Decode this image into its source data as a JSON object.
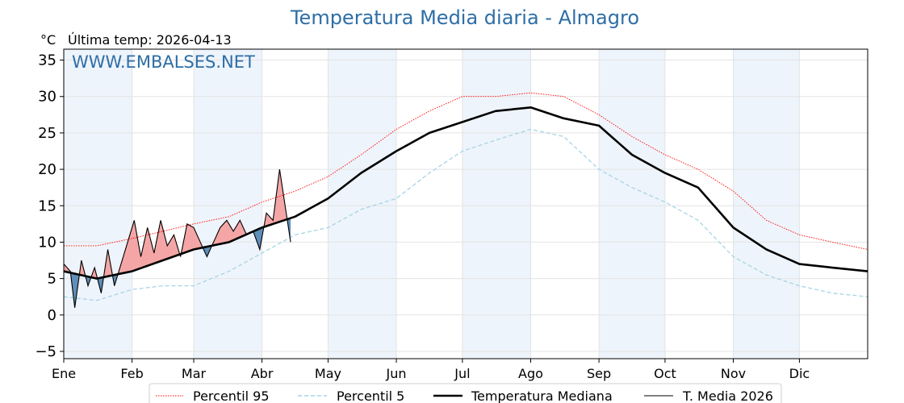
{
  "chart_data": {
    "type": "line",
    "title": "Temperatura Media diaria - Almagro",
    "unit_label": "°C",
    "subtitle": "Última temp: 2026-04-13",
    "watermark": "WWW.EMBALSES.NET",
    "ylim": [
      -6,
      36.5
    ],
    "yticks": [
      -5,
      0,
      5,
      10,
      15,
      20,
      25,
      30,
      35
    ],
    "ytick_labels": [
      "−5",
      "0",
      "5",
      "10",
      "15",
      "20",
      "25",
      "30",
      "35"
    ],
    "xlim": [
      0,
      365
    ],
    "month_ticks": [
      0,
      31,
      59,
      90,
      120,
      151,
      181,
      212,
      243,
      273,
      304,
      334
    ],
    "month_labels": [
      "Ene",
      "Feb",
      "Mar",
      "Abr",
      "May",
      "Jun",
      "Jul",
      "Ago",
      "Sep",
      "Oct",
      "Nov",
      "Dic"
    ],
    "grid": true,
    "legend_position": "bottom",
    "colors": {
      "p95": "#ff0000",
      "p5": "#a6d4e6",
      "median": "#000000",
      "current": "#000000",
      "above_fill": "#f4a6a6",
      "below_fill": "#5f8fb8",
      "band_fill": "#eef4fb",
      "title": "#2e6ea6"
    },
    "series": [
      {
        "name": "Percentil 95",
        "style": "dotted-red",
        "x": [
          0,
          15,
          31,
          45,
          59,
          75,
          90,
          105,
          120,
          135,
          151,
          166,
          181,
          196,
          212,
          227,
          243,
          258,
          273,
          288,
          304,
          319,
          334,
          349,
          365
        ],
        "values": [
          9.5,
          9.5,
          10.5,
          11.5,
          12.5,
          13.5,
          15.5,
          17.0,
          19.0,
          22.0,
          25.5,
          28.0,
          30.0,
          30.0,
          30.5,
          30.0,
          27.5,
          24.5,
          22.0,
          20.0,
          17.0,
          13.0,
          11.0,
          10.0,
          9.0
        ]
      },
      {
        "name": "Percentil 5",
        "style": "dashed-lightblue",
        "x": [
          0,
          15,
          31,
          45,
          59,
          75,
          90,
          105,
          120,
          135,
          151,
          166,
          181,
          196,
          212,
          227,
          243,
          258,
          273,
          288,
          304,
          319,
          334,
          349,
          365
        ],
        "values": [
          2.5,
          2.0,
          3.5,
          4.0,
          4.0,
          6.0,
          8.5,
          11.0,
          12.0,
          14.5,
          16.0,
          19.5,
          22.5,
          24.0,
          25.5,
          24.5,
          20.0,
          17.5,
          15.5,
          13.0,
          8.0,
          5.5,
          4.0,
          3.0,
          2.5
        ]
      },
      {
        "name": "Temperatura Mediana",
        "style": "thick-black",
        "x": [
          0,
          15,
          31,
          45,
          59,
          75,
          90,
          105,
          120,
          135,
          151,
          166,
          181,
          196,
          212,
          227,
          243,
          258,
          273,
          288,
          304,
          319,
          334,
          349,
          365
        ],
        "values": [
          6.0,
          5.0,
          6.0,
          7.5,
          9.0,
          10.0,
          12.0,
          13.5,
          16.0,
          19.5,
          22.5,
          25.0,
          26.5,
          28.0,
          28.5,
          27.0,
          26.0,
          22.0,
          19.5,
          17.5,
          12.0,
          9.0,
          7.0,
          6.5,
          6.0
        ]
      },
      {
        "name": "T. Media 2026",
        "style": "thin-black",
        "x": [
          0,
          3,
          5,
          8,
          11,
          14,
          17,
          20,
          23,
          26,
          29,
          32,
          35,
          38,
          41,
          44,
          47,
          50,
          53,
          56,
          59,
          62,
          65,
          68,
          71,
          74,
          77,
          80,
          83,
          86,
          89,
          92,
          95,
          98,
          101,
          103
        ],
        "values": [
          7.0,
          6.0,
          1.0,
          7.5,
          4.0,
          6.5,
          3.0,
          9.0,
          4.0,
          7.0,
          10.0,
          13.0,
          8.0,
          12.0,
          8.5,
          13.0,
          9.5,
          11.0,
          8.0,
          12.5,
          12.0,
          10.0,
          8.0,
          10.0,
          12.0,
          13.0,
          11.5,
          13.0,
          11.0,
          11.5,
          9.0,
          14.0,
          13.0,
          20.0,
          14.0,
          10.0
        ]
      }
    ]
  }
}
